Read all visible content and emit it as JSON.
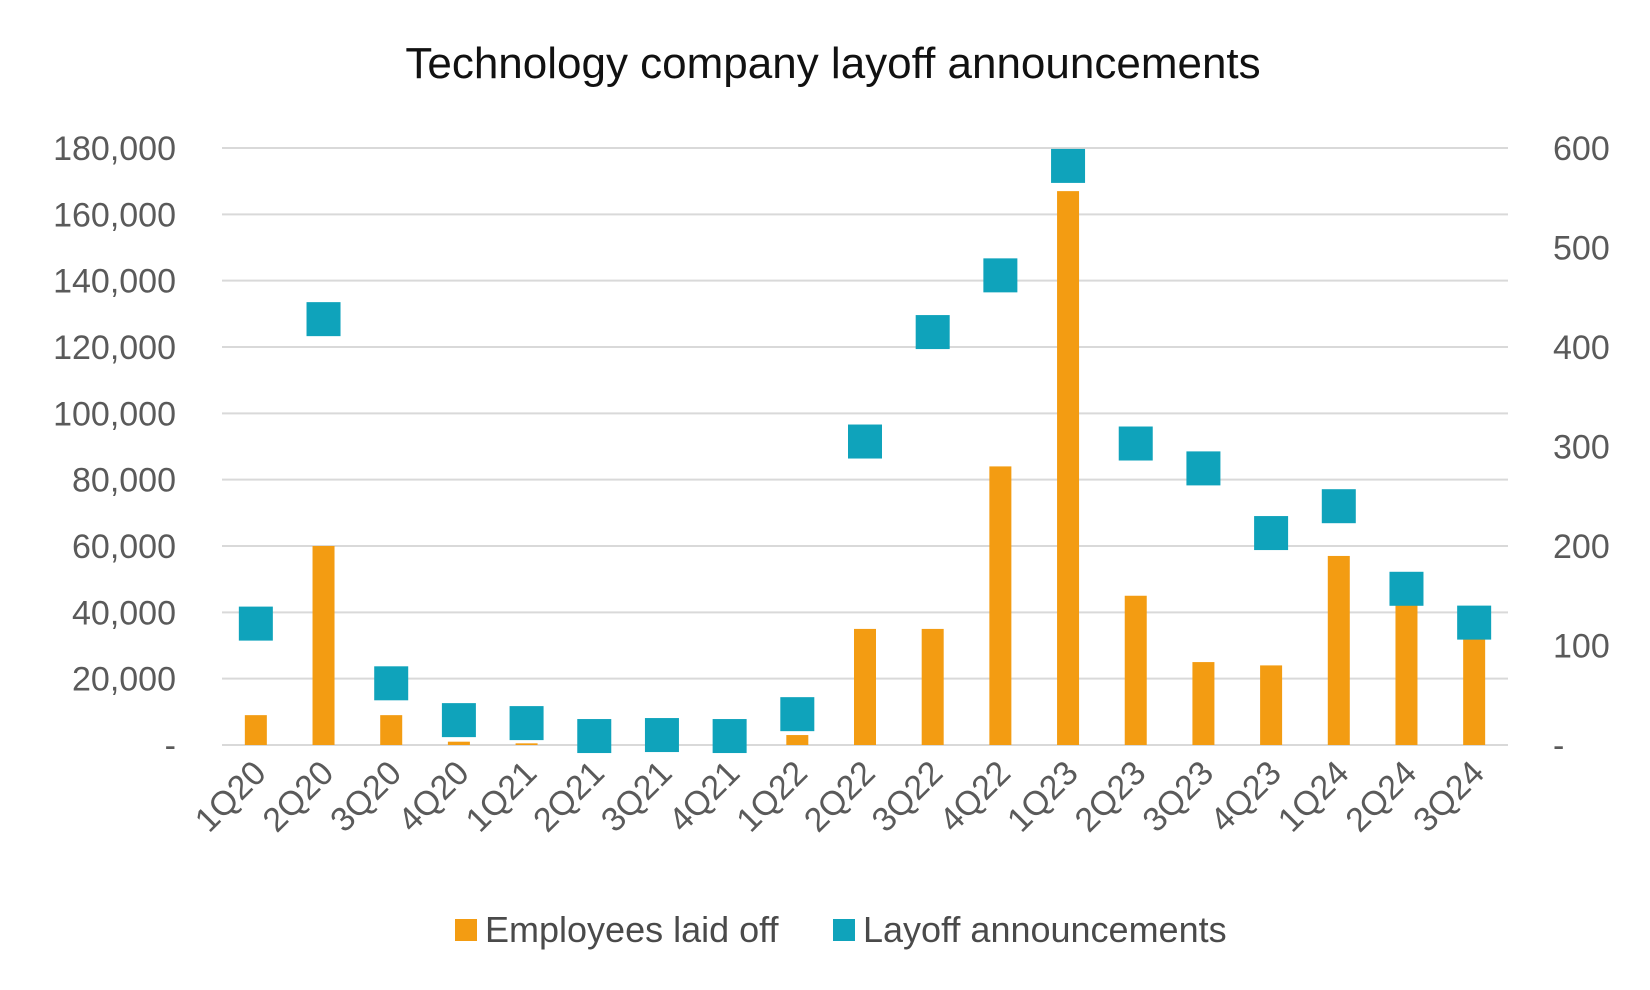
{
  "chart_data": {
    "type": "bar",
    "title": "Technology company layoff announcements",
    "categories": [
      "1Q20",
      "2Q20",
      "3Q20",
      "4Q20",
      "1Q21",
      "2Q21",
      "3Q21",
      "4Q21",
      "1Q22",
      "2Q22",
      "3Q22",
      "4Q22",
      "1Q23",
      "2Q23",
      "3Q23",
      "4Q23",
      "1Q24",
      "2Q24",
      "3Q24"
    ],
    "series": [
      {
        "name": "Employees laid off",
        "type": "bar",
        "axis": "left",
        "color": "#f39c12",
        "values": [
          9000,
          60000,
          9000,
          1000,
          500,
          0,
          0,
          0,
          3000,
          35000,
          35000,
          84000,
          167000,
          45000,
          25000,
          24000,
          57000,
          43000,
          33000
        ]
      },
      {
        "name": "Layoff announcements",
        "type": "scatter",
        "axis": "right",
        "color": "#0fa3bb",
        "values": [
          122,
          428,
          62,
          25,
          22,
          9,
          10,
          9,
          31,
          305,
          415,
          472,
          582,
          303,
          278,
          213,
          240,
          157,
          123
        ]
      }
    ],
    "ylim_left": [
      0,
      180000
    ],
    "ylim_right": [
      0,
      600
    ],
    "yticks_left": [
      "-",
      "20,000",
      "40,000",
      "60,000",
      "80,000",
      "100,000",
      "120,000",
      "140,000",
      "160,000",
      "180,000"
    ],
    "yticks_right": [
      "-",
      "100",
      "200",
      "300",
      "400",
      "500",
      "600"
    ],
    "grid": true,
    "legend_position": "bottom"
  }
}
